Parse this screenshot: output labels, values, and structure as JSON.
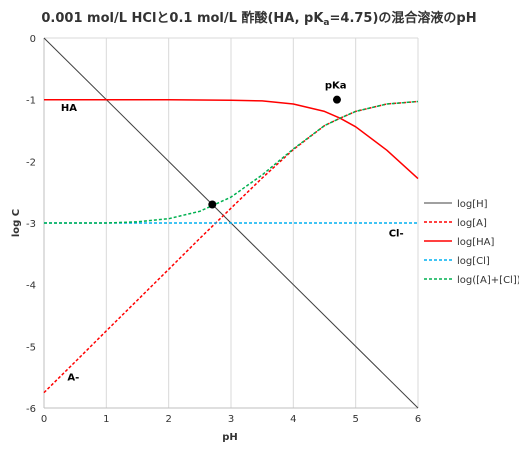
{
  "chart_data": {
    "type": "line",
    "title": "0.001 mol/L HClと0.1 mol/L 酢酸(HA, pKa=4.75)の混合溶液のpH",
    "title_parts": {
      "before_sub": "0.001 mol/L HClと0.1 mol/L 酢酸(HA, pK",
      "sub": "a",
      "after_sub": "=4.75)の混合溶液のpH"
    },
    "xlabel": "pH",
    "ylabel": "log C",
    "xlim": [
      0,
      6
    ],
    "ylim": [
      -6,
      0
    ],
    "x_ticks": [
      "0",
      "1",
      "2",
      "3",
      "4",
      "5",
      "6"
    ],
    "y_ticks": [
      "0",
      "-1",
      "-2",
      "-3",
      "-4",
      "-5",
      "-6"
    ],
    "grid": "vertical",
    "legend_position": "right",
    "pKa": 4.75,
    "C_HA_total": 0.1,
    "C_Cl": 0.001,
    "series": [
      {
        "name": "log[H]",
        "color": "#404040",
        "dash": "solid",
        "points": [
          [
            0,
            0
          ],
          [
            6,
            -6
          ]
        ]
      },
      {
        "name": "log[A]",
        "color": "#ff0000",
        "dash": "dashed",
        "points": [
          [
            0,
            -5.75
          ],
          [
            0.5,
            -5.25
          ],
          [
            1,
            -4.75
          ],
          [
            1.5,
            -4.25
          ],
          [
            2,
            -3.75
          ],
          [
            2.5,
            -3.25
          ],
          [
            3,
            -2.76
          ],
          [
            3.5,
            -2.27
          ],
          [
            4,
            -1.81
          ],
          [
            4.5,
            -1.42
          ],
          [
            4.75,
            -1.3
          ],
          [
            5,
            -1.19
          ],
          [
            5.5,
            -1.07
          ],
          [
            6,
            -1.03
          ]
        ]
      },
      {
        "name": "log[HA]",
        "color": "#ff0000",
        "dash": "solid",
        "points": [
          [
            0,
            -1.0
          ],
          [
            1,
            -1.0
          ],
          [
            2,
            -1.0
          ],
          [
            3,
            -1.01
          ],
          [
            3.5,
            -1.02
          ],
          [
            4,
            -1.07
          ],
          [
            4.5,
            -1.19
          ],
          [
            4.75,
            -1.3
          ],
          [
            5,
            -1.44
          ],
          [
            5.5,
            -1.82
          ],
          [
            6,
            -2.28
          ]
        ]
      },
      {
        "name": "log[Cl]",
        "color": "#00b0f0",
        "dash": "dashed",
        "points": [
          [
            0,
            -3
          ],
          [
            6,
            -3
          ]
        ]
      },
      {
        "name": "log([A]+[Cl])",
        "color": "#00b050",
        "dash": "dashed",
        "points": [
          [
            0,
            -3.0
          ],
          [
            1,
            -3.0
          ],
          [
            1.5,
            -2.98
          ],
          [
            2,
            -2.93
          ],
          [
            2.5,
            -2.81
          ],
          [
            3,
            -2.58
          ],
          [
            3.5,
            -2.22
          ],
          [
            4,
            -1.8
          ],
          [
            4.5,
            -1.42
          ],
          [
            4.75,
            -1.3
          ],
          [
            5,
            -1.19
          ],
          [
            5.5,
            -1.07
          ],
          [
            6,
            -1.03
          ]
        ]
      }
    ],
    "points_marked": [
      {
        "x": 2.7,
        "y": -2.7
      },
      {
        "x": 4.7,
        "y": -1.0
      }
    ],
    "annotations": [
      {
        "text": "pKa",
        "x": 4.68,
        "y": -0.82
      },
      {
        "text": "HA",
        "x": 0.4,
        "y": -1.18
      },
      {
        "text": "Cl-",
        "x": 5.65,
        "y": -3.22
      },
      {
        "text": "A-",
        "x": 0.47,
        "y": -5.55
      }
    ]
  }
}
